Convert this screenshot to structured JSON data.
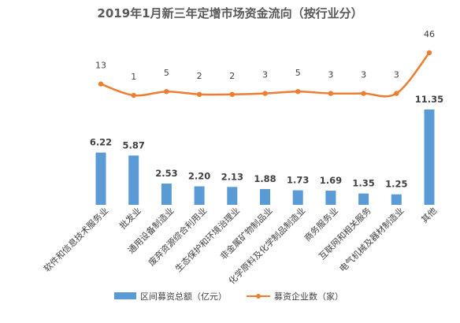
{
  "chart_data": {
    "type": "bar",
    "title": "2019年1月新三年定增市场资金流向（按行业分）",
    "categories": [
      "软件和信息技术服务业",
      "批发业",
      "通用设备制造业",
      "废弃资源综合利用业",
      "生态保护和环境治理业",
      "非金属矿物制品业",
      "化学原料及化学制品制造业",
      "商务服务业",
      "互联网和相关服务",
      "电气机械及器材制造业",
      "其他"
    ],
    "series": [
      {
        "name": "区间募资总额（亿元）",
        "type": "bar",
        "values": [
          6.22,
          5.87,
          2.53,
          2.2,
          2.13,
          1.88,
          1.73,
          1.69,
          1.35,
          1.25,
          11.35
        ],
        "labels": [
          "6.22",
          "5.87",
          "2.53",
          "2.20",
          "2.13",
          "1.88",
          "1.73",
          "1.69",
          "1.35",
          "1.25",
          "11.35"
        ],
        "color": "#5b9bd5"
      },
      {
        "name": "募资企业数（家）",
        "type": "line",
        "values": [
          13,
          1,
          5,
          2,
          2,
          3,
          5,
          3,
          3,
          3,
          46
        ],
        "labels": [
          "13",
          "1",
          "5",
          "2",
          "2",
          "3",
          "5",
          "3",
          "3",
          "3",
          "46"
        ],
        "color": "#ed7d31"
      }
    ],
    "legend_position": "bottom",
    "grid": false
  }
}
